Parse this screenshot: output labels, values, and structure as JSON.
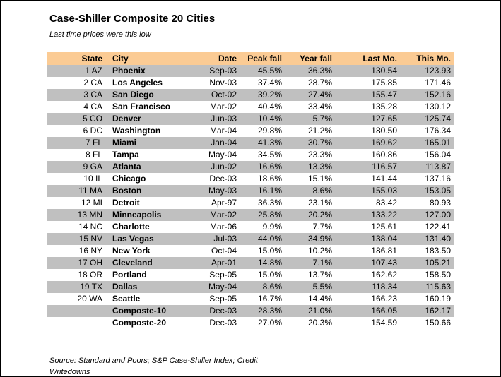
{
  "colors": {
    "header_bg": "#FBCB94",
    "stripe_bg": "#C0C0C0",
    "page_border": "#000000"
  },
  "source": {
    "line1": "Source: Standard and Poors; S&P Case-Shiller Index; Credit",
    "line2": "Writedowns"
  },
  "chart_data": {
    "type": "table",
    "title": "Case-Shiller Composite 20 Cities",
    "subtitle": "Last time prices were this low",
    "columns": [
      "State",
      "City",
      "Date",
      "Peak fall",
      "Year fall",
      "Last Mo.",
      "This Mo."
    ],
    "rows": [
      {
        "state": "1 AZ",
        "city": "Phoenix",
        "date": "Sep-03",
        "peak_fall": "45.5%",
        "year_fall": "36.3%",
        "last_mo": "130.54",
        "this_mo": "123.93"
      },
      {
        "state": "2 CA",
        "city": "Los Angeles",
        "date": "Nov-03",
        "peak_fall": "37.4%",
        "year_fall": "28.7%",
        "last_mo": "175.85",
        "this_mo": "171.46"
      },
      {
        "state": "3 CA",
        "city": "San Diego",
        "date": "Oct-02",
        "peak_fall": "39.2%",
        "year_fall": "27.4%",
        "last_mo": "155.47",
        "this_mo": "152.16"
      },
      {
        "state": "4 CA",
        "city": "San Francisco",
        "date": "Mar-02",
        "peak_fall": "40.4%",
        "year_fall": "33.4%",
        "last_mo": "135.28",
        "this_mo": "130.12"
      },
      {
        "state": "5 CO",
        "city": "Denver",
        "date": "Jun-03",
        "peak_fall": "10.4%",
        "year_fall": "5.7%",
        "last_mo": "127.65",
        "this_mo": "125.74"
      },
      {
        "state": "6 DC",
        "city": "Washington",
        "date": "Mar-04",
        "peak_fall": "29.8%",
        "year_fall": "21.2%",
        "last_mo": "180.50",
        "this_mo": "176.34"
      },
      {
        "state": "7 FL",
        "city": "Miami",
        "date": "Jan-04",
        "peak_fall": "41.3%",
        "year_fall": "30.7%",
        "last_mo": "169.62",
        "this_mo": "165.01"
      },
      {
        "state": "8 FL",
        "city": "Tampa",
        "date": "May-04",
        "peak_fall": "34.5%",
        "year_fall": "23.3%",
        "last_mo": "160.86",
        "this_mo": "156.04"
      },
      {
        "state": "9 GA",
        "city": "Atlanta",
        "date": "Jun-02",
        "peak_fall": "16.6%",
        "year_fall": "13.3%",
        "last_mo": "116.57",
        "this_mo": "113.87"
      },
      {
        "state": "10 IL",
        "city": "Chicago",
        "date": "Dec-03",
        "peak_fall": "18.6%",
        "year_fall": "15.1%",
        "last_mo": "141.44",
        "this_mo": "137.16"
      },
      {
        "state": "11 MA",
        "city": "Boston",
        "date": "May-03",
        "peak_fall": "16.1%",
        "year_fall": "8.6%",
        "last_mo": "155.03",
        "this_mo": "153.05"
      },
      {
        "state": "12 MI",
        "city": "Detroit",
        "date": "Apr-97",
        "peak_fall": "36.3%",
        "year_fall": "23.1%",
        "last_mo": "83.42",
        "this_mo": "80.93"
      },
      {
        "state": "13 MN",
        "city": "Minneapolis",
        "date": "Mar-02",
        "peak_fall": "25.8%",
        "year_fall": "20.2%",
        "last_mo": "133.22",
        "this_mo": "127.00"
      },
      {
        "state": "14 NC",
        "city": "Charlotte",
        "date": "Mar-06",
        "peak_fall": "9.9%",
        "year_fall": "7.7%",
        "last_mo": "125.61",
        "this_mo": "122.41"
      },
      {
        "state": "15 NV",
        "city": "Las Vegas",
        "date": "Jul-03",
        "peak_fall": "44.0%",
        "year_fall": "34.9%",
        "last_mo": "138.04",
        "this_mo": "131.40"
      },
      {
        "state": "16 NY",
        "city": "New York",
        "date": "Oct-04",
        "peak_fall": "15.0%",
        "year_fall": "10.2%",
        "last_mo": "186.81",
        "this_mo": "183.50"
      },
      {
        "state": "17 OH",
        "city": "Cleveland",
        "date": "Apr-01",
        "peak_fall": "14.8%",
        "year_fall": "7.1%",
        "last_mo": "107.43",
        "this_mo": "105.21"
      },
      {
        "state": "18 OR",
        "city": "Portland",
        "date": "Sep-05",
        "peak_fall": "15.0%",
        "year_fall": "13.7%",
        "last_mo": "162.62",
        "this_mo": "158.50"
      },
      {
        "state": "19 TX",
        "city": "Dallas",
        "date": "May-04",
        "peak_fall": "8.6%",
        "year_fall": "5.5%",
        "last_mo": "118.34",
        "this_mo": "115.63"
      },
      {
        "state": "20 WA",
        "city": "Seattle",
        "date": "Sep-05",
        "peak_fall": "16.7%",
        "year_fall": "14.4%",
        "last_mo": "166.23",
        "this_mo": "160.19"
      },
      {
        "state": "",
        "city": "Composte-10",
        "date": "Dec-03",
        "peak_fall": "28.3%",
        "year_fall": "21.0%",
        "last_mo": "166.05",
        "this_mo": "162.17"
      },
      {
        "state": "",
        "city": "Composte-20",
        "date": "Dec-03",
        "peak_fall": "27.0%",
        "year_fall": "20.3%",
        "last_mo": "154.59",
        "this_mo": "150.66"
      }
    ]
  }
}
